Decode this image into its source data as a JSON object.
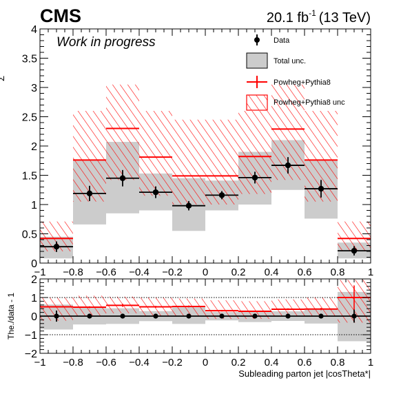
{
  "header": {
    "experiment": "CMS",
    "lumi_value": "20.1 fb",
    "lumi_exp": "-1",
    "lumi_energy": "(13 TeV)",
    "status": "Work in progress"
  },
  "legend": {
    "data": "Data",
    "total_unc": "Total unc.",
    "mc": "Powheg+Pythia8",
    "mc_unc": "Powheg+Pythia8 unc"
  },
  "colors": {
    "data": "#000000",
    "band": "#cccccc",
    "mc": "#ff0000"
  },
  "chart_data": [
    {
      "type": "line",
      "panel": "main",
      "xlabel": "",
      "ylabel": "",
      "xlim": [
        -1,
        1
      ],
      "ylim": [
        0,
        4
      ],
      "bin_edges": [
        -1,
        -0.8,
        -0.6,
        -0.4,
        -0.2,
        0,
        0.2,
        0.4,
        0.6,
        0.8,
        1
      ],
      "xticks": [
        "−1",
        "−0.8",
        "−0.6",
        "−0.4",
        "−0.2",
        "0",
        "0.2",
        "0.4",
        "0.6",
        "0.8",
        "1"
      ],
      "yticks": [
        "0",
        "0.5",
        "1",
        "1.5",
        "2",
        "2.5",
        "3",
        "3.5",
        "4"
      ],
      "series": [
        {
          "name": "Data",
          "values": [
            0.28,
            1.19,
            1.45,
            1.21,
            0.98,
            1.16,
            1.46,
            1.67,
            1.27,
            0.21
          ],
          "errors": [
            0.09,
            0.13,
            0.14,
            0.1,
            0.08,
            0.07,
            0.1,
            0.14,
            0.15,
            0.08
          ]
        },
        {
          "name": "Total unc.",
          "low": [
            0.08,
            0.66,
            0.85,
            0.9,
            0.55,
            0.9,
            1.0,
            1.25,
            0.76,
            0.08
          ],
          "high": [
            0.45,
            1.75,
            2.07,
            1.53,
            1.45,
            1.41,
            1.9,
            2.1,
            1.75,
            0.35
          ]
        },
        {
          "name": "Powheg+Pythia8",
          "values": [
            0.42,
            1.76,
            2.3,
            1.81,
            1.49,
            1.49,
            1.82,
            2.29,
            1.76,
            0.42
          ]
        },
        {
          "name": "Powheg+Pythia8 unc",
          "low": [
            0.2,
            1.05,
            1.42,
            1.15,
            1.0,
            1.0,
            1.18,
            1.42,
            1.05,
            0.2
          ],
          "high": [
            0.71,
            2.6,
            3.05,
            2.6,
            2.45,
            2.45,
            2.6,
            3.05,
            2.6,
            0.71
          ]
        }
      ]
    },
    {
      "type": "line",
      "panel": "ratio",
      "xlabel": "Subleading parton jet |cosTheta*|",
      "ylabel": "The./data - 1",
      "xlim": [
        -1,
        1
      ],
      "ylim": [
        -2,
        2
      ],
      "xticks": [
        "−1",
        "−0.8",
        "−0.6",
        "−0.4",
        "−0.2",
        "0",
        "0.2",
        "0.4",
        "0.6",
        "0.8",
        "1"
      ],
      "yticks": [
        "−2",
        "−1",
        "0",
        "1",
        "2"
      ],
      "reference_lines": [
        -1,
        0,
        1
      ],
      "series": [
        {
          "name": "Data",
          "values": [
            0,
            0,
            0,
            0,
            0,
            0,
            0,
            0,
            0,
            0
          ],
          "errors": [
            0.3,
            0.12,
            0.1,
            0.08,
            0.08,
            0.06,
            0.07,
            0.08,
            0.12,
            0.35
          ]
        },
        {
          "name": "Total unc.",
          "low": [
            -0.72,
            -0.45,
            -0.42,
            -0.27,
            -0.42,
            -0.23,
            -0.32,
            -0.26,
            -0.4,
            -1.35
          ],
          "high": [
            0.62,
            0.46,
            0.42,
            0.27,
            0.48,
            0.22,
            0.3,
            0.26,
            0.38,
            1.3
          ]
        },
        {
          "name": "Powheg+Pythia8",
          "values": [
            0.5,
            0.48,
            0.58,
            0.5,
            0.52,
            0.29,
            0.26,
            0.37,
            0.38,
            1.0
          ],
          "errors": [
            0.04,
            0.05,
            0.08,
            0.05,
            0.05,
            0.04,
            0.04,
            0.05,
            0.06,
            0.65
          ]
        },
        {
          "name": "Powheg+Pythia8 unc",
          "low": [
            -0.25,
            0.0,
            0.15,
            0.0,
            0.0,
            -0.15,
            -0.15,
            0.0,
            0.0,
            -0.35
          ],
          "high": [
            1.0,
            1.1,
            1.05,
            1.0,
            0.95,
            0.85,
            0.8,
            0.9,
            1.0,
            1.95
          ]
        }
      ]
    }
  ]
}
